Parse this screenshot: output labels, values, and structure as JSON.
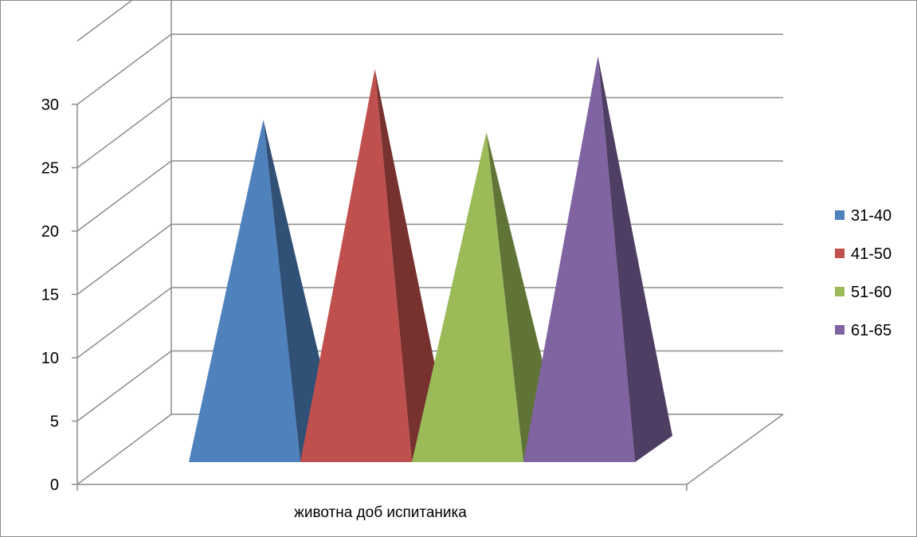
{
  "chart_data": {
    "type": "bar",
    "bar_shape": "3d-pyramid",
    "title": "",
    "xlabel": "",
    "ylabel": "",
    "categories": [
      "животна доб испитаника"
    ],
    "series": [
      {
        "name": "31-40",
        "values": [
          26
        ],
        "color": "#4F81BD"
      },
      {
        "name": "41-50",
        "values": [
          30
        ],
        "color": "#C0504D"
      },
      {
        "name": "51-60",
        "values": [
          25
        ],
        "color": "#9BBB59"
      },
      {
        "name": "61-65",
        "values": [
          31
        ],
        "color": "#8064A2"
      }
    ],
    "ylim": [
      0,
      30
    ],
    "yticks": [
      0,
      5,
      10,
      15,
      20,
      25,
      30
    ],
    "grid": true,
    "legend_position": "right"
  }
}
